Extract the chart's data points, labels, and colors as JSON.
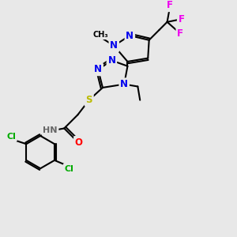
{
  "bg_color": "#e8e8e8",
  "bond_color": "#000000",
  "bond_width": 1.5,
  "atom_colors": {
    "N": "#0000ee",
    "O": "#ff0000",
    "S": "#bbbb00",
    "Cl": "#00aa00",
    "F": "#ee00ee",
    "C": "#000000",
    "H": "#666666"
  },
  "font_size": 8.5,
  "xlim": [
    0,
    10
  ],
  "ylim": [
    0,
    10
  ]
}
